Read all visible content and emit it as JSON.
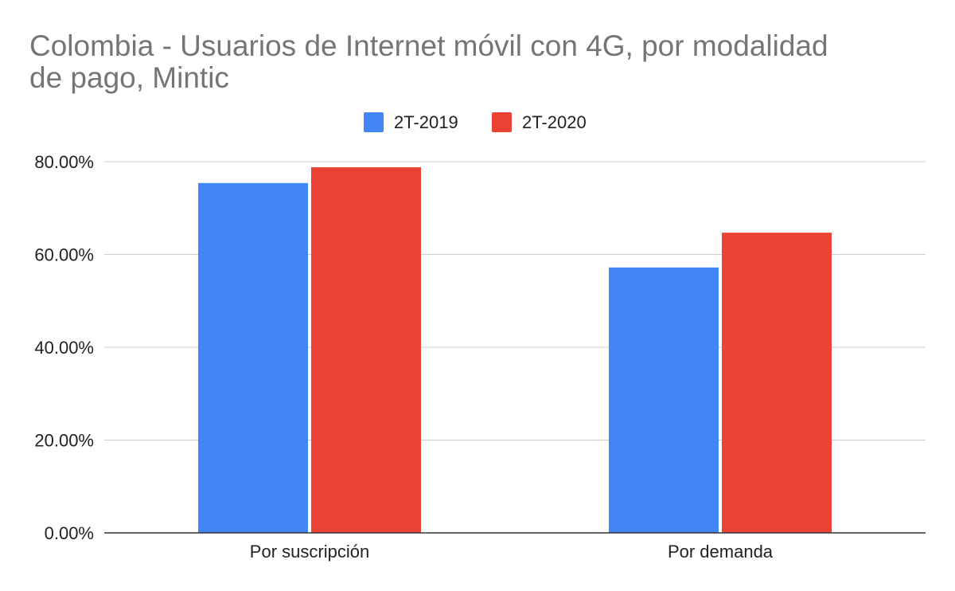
{
  "chart_data": {
    "type": "bar",
    "title_lines": [
      "Colombia - Usuarios de Internet móvil con 4G, por modalidad",
      "de pago, Mintic"
    ],
    "xlabel": "",
    "ylabel": "",
    "categories": [
      "Por suscripción",
      "Por demanda"
    ],
    "series": [
      {
        "name": "2T-2019",
        "color": "#4285F4",
        "values": [
          75.4,
          57.2
        ]
      },
      {
        "name": "2T-2020",
        "color": "#EA4335",
        "values": [
          78.8,
          64.7
        ]
      }
    ],
    "ylim": [
      0,
      80
    ],
    "yticks": [
      {
        "value": 0,
        "label": "0.00%"
      },
      {
        "value": 20,
        "label": "20.00%"
      },
      {
        "value": 40,
        "label": "40.00%"
      },
      {
        "value": 60,
        "label": "60.00%"
      },
      {
        "value": 80,
        "label": "80.00%"
      }
    ],
    "grid": true,
    "legend_position": "top-center"
  }
}
